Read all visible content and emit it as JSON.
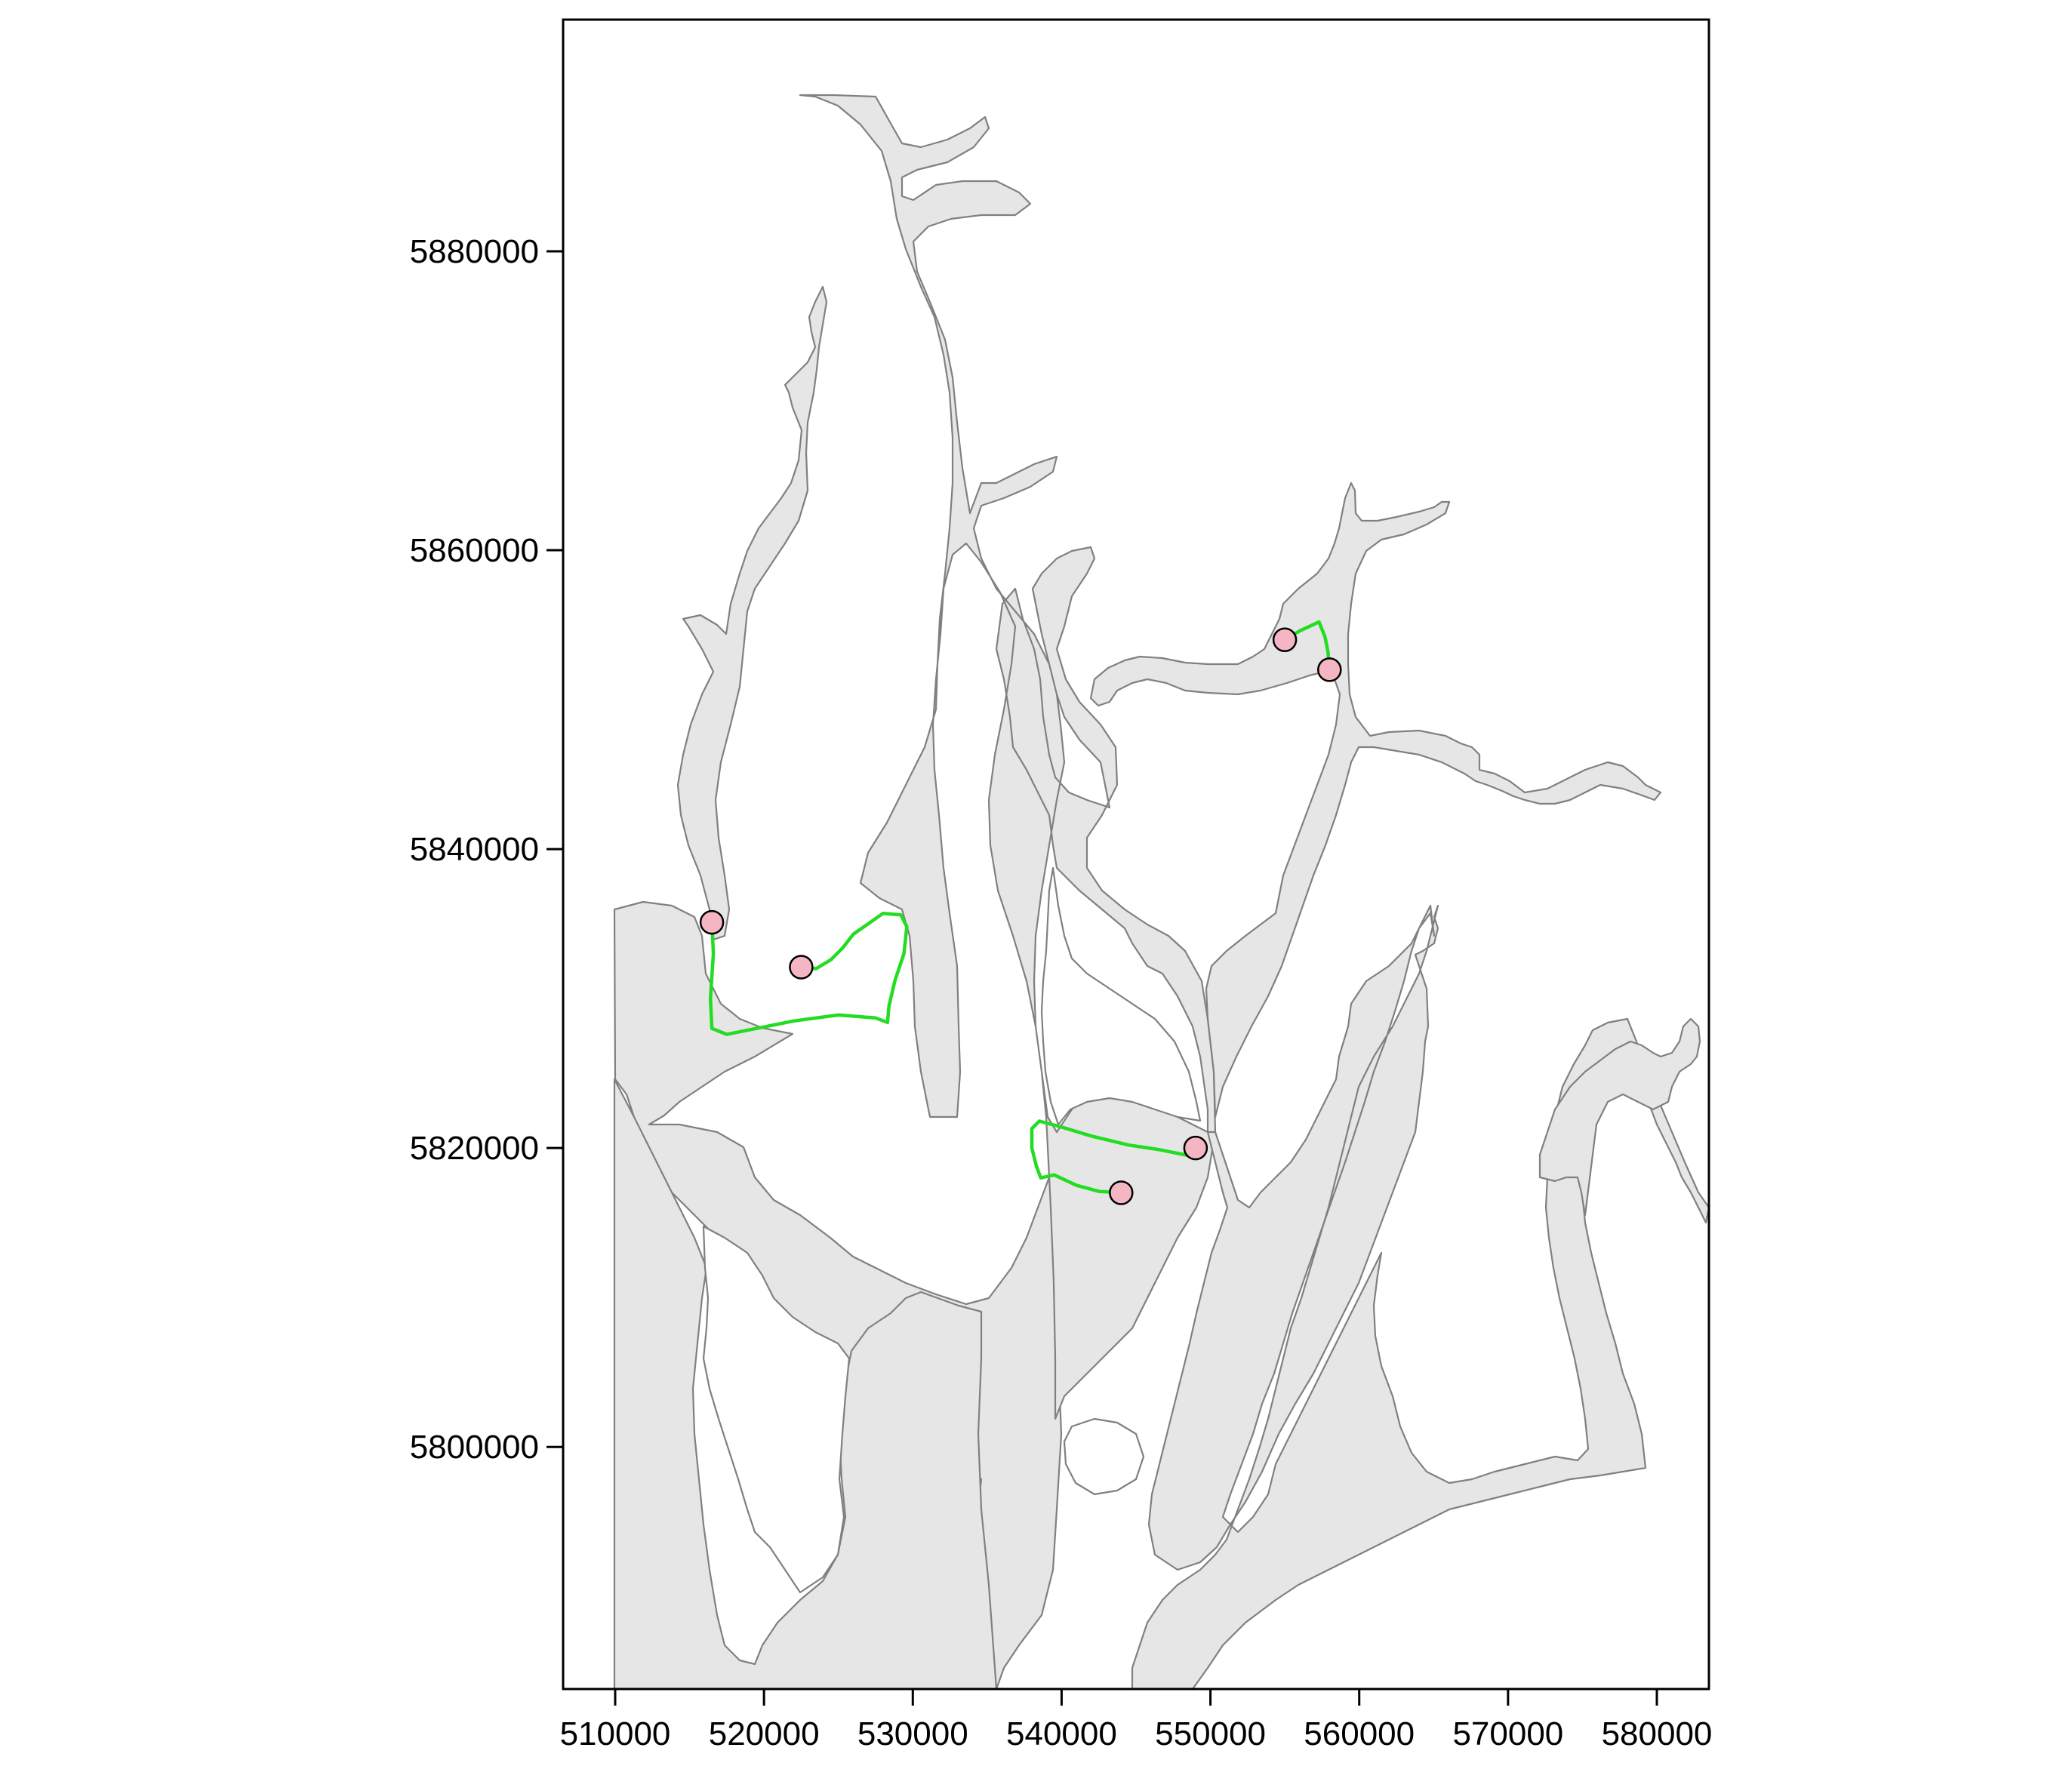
{
  "colors": {
    "water_fill": "#e6e6e6",
    "coast_stroke": "#808080",
    "track_color": "#22dd22",
    "point_fill": "#f4b6c2",
    "point_stroke": "#000000",
    "frame_stroke": "#000000",
    "background": "#ffffff"
  },
  "chart_data": {
    "type": "map",
    "title": "",
    "xlabel": "",
    "ylabel": "",
    "xlim": [
      506500,
      583500
    ],
    "ylim": [
      5783800,
      5895500
    ],
    "grid": false,
    "legend": "none",
    "x_ticks": [
      510000,
      520000,
      530000,
      540000,
      550000,
      560000,
      570000,
      580000
    ],
    "y_ticks": [
      5800000,
      5820000,
      5840000,
      5860000,
      5880000
    ],
    "x_tick_labels": [
      "510000",
      "520000",
      "530000",
      "540000",
      "550000",
      "560000",
      "570000",
      "580000"
    ],
    "y_tick_labels": [
      "5800000",
      "5820000",
      "5840000",
      "5860000",
      "5880000"
    ],
    "points": [
      {
        "x": 516500,
        "y": 5835100
      },
      {
        "x": 522500,
        "y": 5832100
      },
      {
        "x": 555000,
        "y": 5854000
      },
      {
        "x": 558000,
        "y": 5852000
      },
      {
        "x": 549000,
        "y": 5820000
      },
      {
        "x": 544000,
        "y": 5817000
      }
    ],
    "tracks": [
      [
        [
          516500,
          5835100
        ],
        [
          516600,
          5833000
        ],
        [
          516400,
          5830000
        ],
        [
          516500,
          5828000
        ],
        [
          517500,
          5827600
        ],
        [
          519500,
          5828000
        ],
        [
          522000,
          5828500
        ],
        [
          525000,
          5828900
        ],
        [
          527500,
          5828700
        ],
        [
          528300,
          5828400
        ],
        [
          528400,
          5829500
        ],
        [
          528800,
          5831200
        ],
        [
          529400,
          5833000
        ],
        [
          529600,
          5834800
        ],
        [
          529200,
          5835600
        ],
        [
          528000,
          5835700
        ],
        [
          527000,
          5835000
        ],
        [
          526000,
          5834300
        ],
        [
          525300,
          5833400
        ],
        [
          524500,
          5832600
        ],
        [
          523500,
          5832000
        ],
        [
          522500,
          5832100
        ]
      ],
      [
        [
          555000,
          5854000
        ],
        [
          556000,
          5854600
        ],
        [
          557300,
          5855200
        ],
        [
          557700,
          5854200
        ],
        [
          557900,
          5853200
        ],
        [
          558000,
          5852000
        ]
      ],
      [
        [
          549000,
          5820000
        ],
        [
          548500,
          5819500
        ],
        [
          546500,
          5819900
        ],
        [
          544500,
          5820200
        ],
        [
          542000,
          5820800
        ],
        [
          540000,
          5821400
        ],
        [
          538500,
          5821800
        ],
        [
          538000,
          5821300
        ],
        [
          538000,
          5820000
        ],
        [
          538300,
          5818800
        ],
        [
          538600,
          5818000
        ],
        [
          539500,
          5818200
        ],
        [
          541000,
          5817500
        ],
        [
          542500,
          5817100
        ],
        [
          544000,
          5817000
        ]
      ]
    ]
  }
}
